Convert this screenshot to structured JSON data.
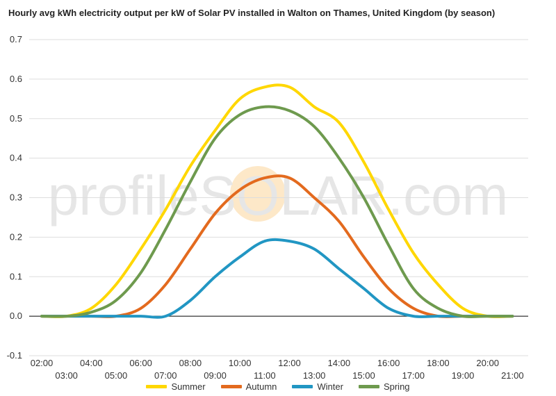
{
  "title": "Hourly avg kWh electricity output per kW of Solar PV installed in Walton on Thames, United Kingdom (by season)",
  "watermark": "profileSOLAR.com",
  "colors": {
    "Summer": "#FFD700",
    "Autumn": "#E36A1E",
    "Winter": "#2196C3",
    "Spring": "#6E9A4E",
    "grid": "#dddddd",
    "zero_line": "#000000",
    "watermark_text": "#e6e6e6",
    "watermark_sun": "#fde8c8"
  },
  "chart_data": {
    "type": "line",
    "title": "Hourly avg kWh electricity output per kW of Solar PV installed in Walton on Thames, United Kingdom (by season)",
    "xlabel": "",
    "ylabel": "",
    "ylim": [
      -0.1,
      0.7
    ],
    "yticks": [
      "-0.1",
      "0.0",
      "0.1",
      "0.2",
      "0.3",
      "0.4",
      "0.5",
      "0.6",
      "0.7"
    ],
    "x": [
      "02:00",
      "03:00",
      "04:00",
      "05:00",
      "06:00",
      "07:00",
      "08:00",
      "09:00",
      "10:00",
      "11:00",
      "12:00",
      "13:00",
      "14:00",
      "15:00",
      "16:00",
      "17:00",
      "18:00",
      "19:00",
      "20:00",
      "21:00"
    ],
    "grid": true,
    "legend_position": "bottom",
    "series": [
      {
        "name": "Summer",
        "values": [
          0.0,
          0.0,
          0.02,
          0.08,
          0.17,
          0.27,
          0.38,
          0.47,
          0.55,
          0.58,
          0.58,
          0.53,
          0.49,
          0.39,
          0.27,
          0.16,
          0.08,
          0.02,
          0.0,
          0.0
        ]
      },
      {
        "name": "Autumn",
        "values": [
          0.0,
          0.0,
          0.0,
          0.0,
          0.02,
          0.08,
          0.17,
          0.26,
          0.32,
          0.35,
          0.35,
          0.3,
          0.24,
          0.15,
          0.07,
          0.02,
          0.0,
          0.0,
          0.0,
          0.0
        ]
      },
      {
        "name": "Winter",
        "values": [
          0.0,
          0.0,
          0.0,
          0.0,
          0.0,
          0.0,
          0.04,
          0.1,
          0.15,
          0.19,
          0.19,
          0.17,
          0.12,
          0.07,
          0.02,
          0.0,
          0.0,
          0.0,
          0.0,
          0.0
        ]
      },
      {
        "name": "Spring",
        "values": [
          0.0,
          0.0,
          0.01,
          0.04,
          0.11,
          0.22,
          0.34,
          0.45,
          0.51,
          0.53,
          0.52,
          0.48,
          0.4,
          0.3,
          0.18,
          0.07,
          0.02,
          0.0,
          0.0,
          0.0
        ]
      }
    ]
  }
}
